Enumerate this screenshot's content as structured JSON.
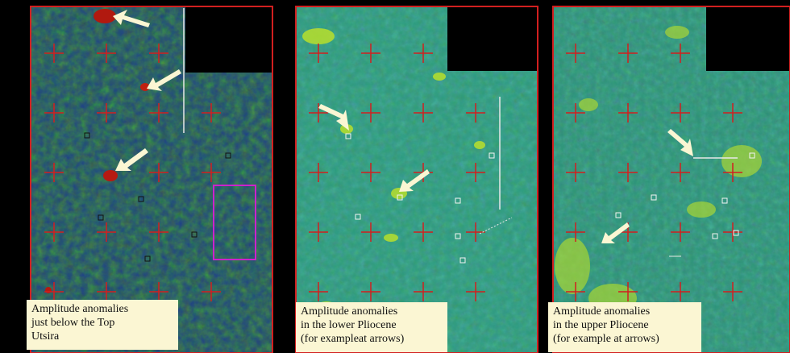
{
  "panels": [
    {
      "id": "top-utsira",
      "caption_lines": [
        "Amplitude anomalies",
        "just below the Top",
        "Utsira"
      ],
      "arrow_count": 3
    },
    {
      "id": "lower-pliocene",
      "caption_lines": [
        "Amplitude anomalies",
        "in the lower Pliocene",
        "(for exampleat arrows)"
      ],
      "arrow_count": 2
    },
    {
      "id": "upper-pliocene",
      "caption_lines": [
        "Amplitude anomalies",
        "in the upper Pliocene",
        "(for example at arrows)"
      ],
      "arrow_count": 2
    }
  ],
  "colors": {
    "grid_red": "#d21f1f",
    "arrow": "#fbf6d3",
    "highlight_box": "#cc22cc",
    "caption_bg": "#fbf6d3"
  }
}
